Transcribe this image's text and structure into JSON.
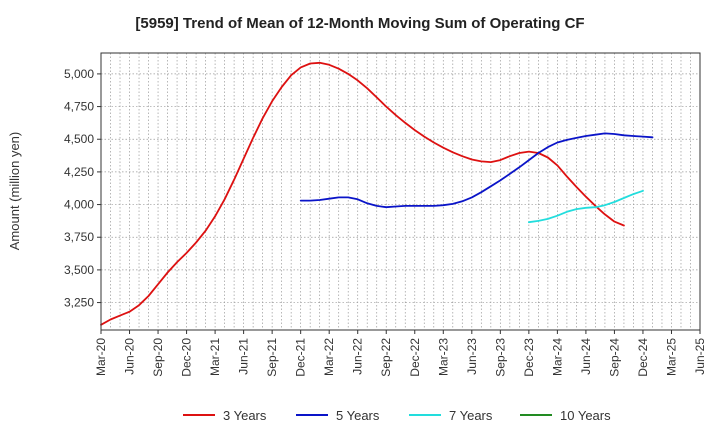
{
  "chart_data": {
    "type": "line",
    "title": "[5959]  Trend of Mean of 12-Month Moving Sum of Operating CF",
    "xlabel": "",
    "ylabel": "Amount (million yen)",
    "x_tick_labels": [
      "Mar-20",
      "Jun-20",
      "Sep-20",
      "Dec-20",
      "Mar-21",
      "Jun-21",
      "Sep-21",
      "Dec-21",
      "Mar-22",
      "Jun-22",
      "Sep-22",
      "Dec-22",
      "Mar-23",
      "Jun-23",
      "Sep-23",
      "Dec-23",
      "Mar-24",
      "Jun-24",
      "Sep-24",
      "Dec-24",
      "Mar-25",
      "Jun-25"
    ],
    "y_ticks": [
      3250,
      3500,
      3750,
      4000,
      4250,
      4500,
      4750,
      5000
    ],
    "y_tick_labels": [
      "3,250",
      "3,500",
      "3,750",
      "4,000",
      "4,250",
      "4,500",
      "4,750",
      "5,000"
    ],
    "ylim": [
      3040,
      5160
    ],
    "grid": true,
    "legend_position": "bottom",
    "series": [
      {
        "name": "3 Years",
        "color": "#dd1111",
        "x": [
          0,
          1,
          2,
          3,
          4,
          5,
          6,
          7,
          8,
          9,
          10,
          11,
          12,
          13,
          14,
          15,
          16,
          17,
          18,
          19,
          20,
          21,
          22,
          23,
          24,
          25,
          26,
          27,
          28,
          29,
          30,
          31,
          32,
          33,
          34,
          35,
          36,
          37,
          38,
          39,
          40,
          41,
          42,
          43,
          44,
          45,
          46,
          47,
          48,
          49,
          50,
          51,
          52,
          53,
          54,
          55,
          56,
          57,
          58,
          59,
          60,
          61,
          62,
          63
        ],
        "values": [
          3080,
          3120,
          3150,
          3180,
          3230,
          3300,
          3390,
          3480,
          3560,
          3630,
          3710,
          3800,
          3910,
          4040,
          4190,
          4350,
          4510,
          4660,
          4790,
          4900,
          4990,
          5050,
          5080,
          5085,
          5070,
          5040,
          5000,
          4950,
          4890,
          4820,
          4750,
          4685,
          4625,
          4570,
          4520,
          4475,
          4435,
          4400,
          4370,
          4345,
          4330,
          4325,
          4340,
          4370,
          4395,
          4405,
          4395,
          4360,
          4300,
          4215,
          4135,
          4060,
          3990,
          3925,
          3870,
          3840,
          null,
          null,
          null,
          null,
          null,
          null,
          null,
          null
        ]
      },
      {
        "name": "5 Years",
        "color": "#0a14c8",
        "x": [
          0,
          1,
          2,
          3,
          4,
          5,
          6,
          7,
          8,
          9,
          10,
          11,
          12,
          13,
          14,
          15,
          16,
          17,
          18,
          19,
          20,
          21,
          22,
          23,
          24,
          25,
          26,
          27,
          28,
          29,
          30,
          31,
          32,
          33,
          34,
          35,
          36,
          37,
          38,
          39,
          40,
          41,
          42,
          43,
          44,
          45,
          46,
          47,
          48,
          49,
          50,
          51,
          52,
          53,
          54,
          55,
          56,
          57,
          58,
          59,
          60,
          61,
          62,
          63
        ],
        "values": [
          null,
          null,
          null,
          null,
          null,
          null,
          null,
          null,
          null,
          null,
          null,
          null,
          null,
          null,
          null,
          null,
          null,
          null,
          null,
          null,
          null,
          4030,
          4030,
          4035,
          4045,
          4055,
          4055,
          4040,
          4010,
          3990,
          3980,
          3985,
          3990,
          3990,
          3990,
          3990,
          3995,
          4005,
          4025,
          4055,
          4095,
          4140,
          4185,
          4235,
          4285,
          4340,
          4395,
          4440,
          4475,
          4495,
          4510,
          4525,
          4535,
          4545,
          4540,
          4530,
          4525,
          4520,
          4515,
          null,
          null,
          null,
          null,
          null
        ],
        "offset_note": ""
      },
      {
        "name": "7 Years",
        "color": "#22dddd",
        "x": [
          45,
          46,
          47,
          48,
          49,
          50,
          51,
          52,
          53,
          54,
          55,
          56,
          57
        ],
        "values": [
          3865,
          3875,
          3890,
          3915,
          3945,
          3965,
          3975,
          3980,
          3995,
          4020,
          4050,
          4080,
          4105
        ]
      },
      {
        "name": "10 Years",
        "color": "#228b22",
        "x": [],
        "values": []
      }
    ]
  }
}
